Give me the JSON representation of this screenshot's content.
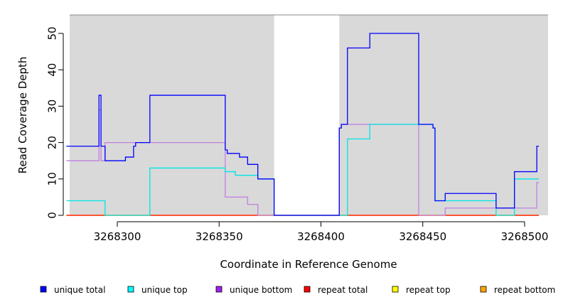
{
  "chart_data": {
    "type": "line",
    "title": "",
    "xlabel": "Coordinate in Reference Genome",
    "ylabel": "Read Coverage Depth",
    "xlim": [
      3268275,
      3268507
    ],
    "ylim": [
      0,
      55
    ],
    "x_ticks": [
      3268300,
      3268350,
      3268400,
      3268450,
      3268500
    ],
    "x_tick_labels": [
      "3268300",
      "3268350",
      "3268400",
      "3268450",
      "3268500"
    ],
    "y_ticks": [
      0,
      10,
      20,
      30,
      40,
      50
    ],
    "y_tick_labels": [
      "0",
      "10",
      "20",
      "30",
      "40",
      "50"
    ],
    "grid": false,
    "background": "#d9d9d9",
    "uncovered_region": [
      3268377,
      3268409
    ],
    "legend_position": "bottom",
    "series": [
      {
        "name": "unique total",
        "color": "#0000ff",
        "points": [
          [
            3268275,
            19
          ],
          [
            3268291,
            19
          ],
          [
            3268291,
            33
          ],
          [
            3268292,
            33
          ],
          [
            3268292,
            19
          ],
          [
            3268294,
            19
          ],
          [
            3268294,
            15
          ],
          [
            3268304,
            15
          ],
          [
            3268304,
            16
          ],
          [
            3268308,
            16
          ],
          [
            3268308,
            19
          ],
          [
            3268309,
            19
          ],
          [
            3268309,
            20
          ],
          [
            3268316,
            20
          ],
          [
            3268316,
            33
          ],
          [
            3268353,
            33
          ],
          [
            3268353,
            18
          ],
          [
            3268354,
            18
          ],
          [
            3268354,
            17
          ],
          [
            3268360,
            17
          ],
          [
            3268360,
            16
          ],
          [
            3268364,
            16
          ],
          [
            3268364,
            14
          ],
          [
            3268369,
            14
          ],
          [
            3268369,
            10
          ],
          [
            3268377,
            10
          ],
          [
            3268377,
            0
          ],
          [
            3268409,
            0
          ],
          [
            3268409,
            24
          ],
          [
            3268410,
            24
          ],
          [
            3268410,
            25
          ],
          [
            3268413,
            25
          ],
          [
            3268413,
            46
          ],
          [
            3268424,
            46
          ],
          [
            3268424,
            50
          ],
          [
            3268448,
            50
          ],
          [
            3268448,
            25
          ],
          [
            3268455,
            25
          ],
          [
            3268455,
            24
          ],
          [
            3268456,
            24
          ],
          [
            3268456,
            4
          ],
          [
            3268461,
            4
          ],
          [
            3268461,
            6
          ],
          [
            3268486,
            6
          ],
          [
            3268486,
            2
          ],
          [
            3268495,
            2
          ],
          [
            3268495,
            12
          ],
          [
            3268506,
            12
          ],
          [
            3268506,
            19
          ],
          [
            3268507,
            19
          ]
        ]
      },
      {
        "name": "unique top",
        "color": "#00e5e5",
        "points": [
          [
            3268275,
            4
          ],
          [
            3268294,
            4
          ],
          [
            3268294,
            0
          ],
          [
            3268316,
            0
          ],
          [
            3268316,
            13
          ],
          [
            3268353,
            13
          ],
          [
            3268353,
            12
          ],
          [
            3268358,
            12
          ],
          [
            3268358,
            11
          ],
          [
            3268369,
            11
          ],
          [
            3268369,
            10
          ],
          [
            3268377,
            10
          ],
          [
            3268377,
            0
          ],
          [
            3268413,
            0
          ],
          [
            3268413,
            21
          ],
          [
            3268424,
            21
          ],
          [
            3268424,
            25
          ],
          [
            3268455,
            25
          ],
          [
            3268455,
            24
          ],
          [
            3268456,
            24
          ],
          [
            3268456,
            4
          ],
          [
            3268486,
            4
          ],
          [
            3268486,
            0
          ],
          [
            3268495,
            0
          ],
          [
            3268495,
            10
          ],
          [
            3268507,
            10
          ]
        ]
      },
      {
        "name": "unique bottom",
        "color": "#c080e0",
        "points": [
          [
            3268275,
            15
          ],
          [
            3268291,
            15
          ],
          [
            3268291,
            29
          ],
          [
            3268292,
            29
          ],
          [
            3268292,
            15
          ],
          [
            3268294,
            15
          ],
          [
            3268294,
            20
          ],
          [
            3268353,
            20
          ],
          [
            3268353,
            5
          ],
          [
            3268364,
            5
          ],
          [
            3268364,
            3
          ],
          [
            3268369,
            3
          ],
          [
            3268369,
            0
          ],
          [
            3268409,
            0
          ],
          [
            3268409,
            24
          ],
          [
            3268410,
            24
          ],
          [
            3268410,
            25
          ],
          [
            3268448,
            25
          ],
          [
            3268448,
            0
          ],
          [
            3268461,
            0
          ],
          [
            3268461,
            2
          ],
          [
            3268506,
            2
          ],
          [
            3268506,
            9
          ],
          [
            3268507,
            9
          ]
        ]
      },
      {
        "name": "repeat total",
        "color": "#ff0000",
        "points": [
          [
            3268275,
            0
          ],
          [
            3268507,
            0
          ]
        ]
      },
      {
        "name": "repeat top",
        "color": "#ffff00",
        "points": [
          [
            3268275,
            0
          ],
          [
            3268507,
            0
          ]
        ]
      },
      {
        "name": "repeat bottom",
        "color": "#ffa500",
        "points": [
          [
            3268275,
            0
          ],
          [
            3268507,
            0
          ]
        ]
      }
    ],
    "legend": [
      {
        "label": "unique total",
        "color": "#0000ff"
      },
      {
        "label": "unique top",
        "color": "#00ffff"
      },
      {
        "label": "unique bottom",
        "color": "#a020f0"
      },
      {
        "label": "repeat total",
        "color": "#ff0000"
      },
      {
        "label": "repeat top",
        "color": "#ffff00"
      },
      {
        "label": "repeat bottom",
        "color": "#ffa500"
      }
    ]
  }
}
